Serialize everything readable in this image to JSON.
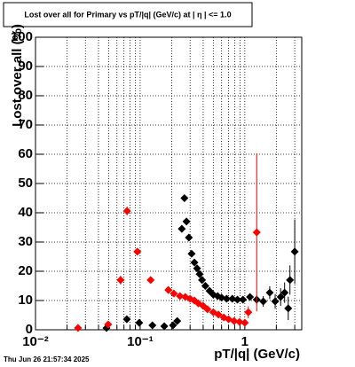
{
  "chart_data": {
    "type": "scatter",
    "title": "Lost over all for Primary vs pT/|q| (GeV/c) at | η | <= 1.0",
    "x_label": "pT/|q| (GeV/c)",
    "y_label": "Lost over all (%)",
    "timestamp": "Thu Jun 26 21:57:34 2025",
    "xlog": true,
    "grid": true,
    "xlim": [
      0.01,
      3.5
    ],
    "ylim": [
      0,
      100
    ],
    "xticks": [
      {
        "value": 0.01,
        "label": "10⁻²"
      },
      {
        "value": 0.1,
        "label": "10⁻¹"
      },
      {
        "value": 1,
        "label": "1"
      }
    ],
    "xminorticks": [
      0.02,
      0.03,
      0.04,
      0.05,
      0.06,
      0.07,
      0.08,
      0.09,
      0.2,
      0.3,
      0.4,
      0.5,
      0.6,
      0.7,
      0.8,
      0.9,
      2,
      3
    ],
    "yticks": [
      0,
      10,
      20,
      30,
      40,
      50,
      60,
      70,
      80,
      90,
      100
    ],
    "series": [
      {
        "color": "#000000",
        "x": [
          0.0477,
          0.0746,
          0.098,
          0.131,
          0.17,
          0.206,
          0.226,
          0.25,
          0.265,
          0.277,
          0.292,
          0.31,
          0.33,
          0.35,
          0.37,
          0.39,
          0.42,
          0.46,
          0.5,
          0.55,
          0.6,
          0.67,
          0.76,
          0.85,
          0.96,
          1.12,
          1.3,
          1.5,
          1.73,
          1.95,
          2.2,
          2.4,
          2.6,
          2.7,
          3.0
        ],
        "values": [
          0.6,
          3.6,
          2.4,
          1.5,
          1.2,
          1.5,
          3,
          34.5,
          45,
          37,
          31.5,
          26,
          23,
          21,
          19,
          17,
          15,
          13.3,
          12,
          11.5,
          11,
          10.6,
          10.6,
          10.3,
          10.3,
          11.2,
          10.3,
          9.7,
          12.7,
          9.7,
          11.2,
          12.7,
          7.3,
          17,
          26.7
        ],
        "errors": [
          0.6,
          1,
          0.8,
          0.5,
          0.5,
          0.5,
          0.8,
          1.2,
          1.2,
          1.2,
          1,
          1,
          0.9,
          0.9,
          0.8,
          0.8,
          0.7,
          0.7,
          0.7,
          0.7,
          0.7,
          0.7,
          0.8,
          0.9,
          1,
          1.2,
          1.5,
          1.8,
          2.2,
          2.5,
          3,
          3.5,
          4,
          5,
          11
        ]
      },
      {
        "color": "#ff0000",
        "x": [
          0.0255,
          0.0495,
          0.065,
          0.075,
          0.094,
          0.126,
          0.186,
          0.21,
          0.24,
          0.27,
          0.3,
          0.33,
          0.36,
          0.4,
          0.44,
          0.5,
          0.56,
          0.63,
          0.7,
          0.79,
          0.89,
          1.0,
          1.08,
          1.3
        ],
        "values": [
          0.6,
          1.8,
          17,
          40.6,
          26.7,
          17,
          13.6,
          12.4,
          11.5,
          11.2,
          10.6,
          10,
          9,
          8.2,
          7,
          6,
          5.2,
          4.2,
          3.6,
          3,
          2.7,
          2.4,
          6,
          33.3
        ],
        "errors": [
          0.6,
          1,
          1.5,
          1.5,
          1.2,
          1,
          0.8,
          0.7,
          0.7,
          0.7,
          0.6,
          0.6,
          0.6,
          0.6,
          0.6,
          0.6,
          0.6,
          0.6,
          0.7,
          0.8,
          1,
          1.2,
          2,
          27
        ]
      }
    ]
  }
}
